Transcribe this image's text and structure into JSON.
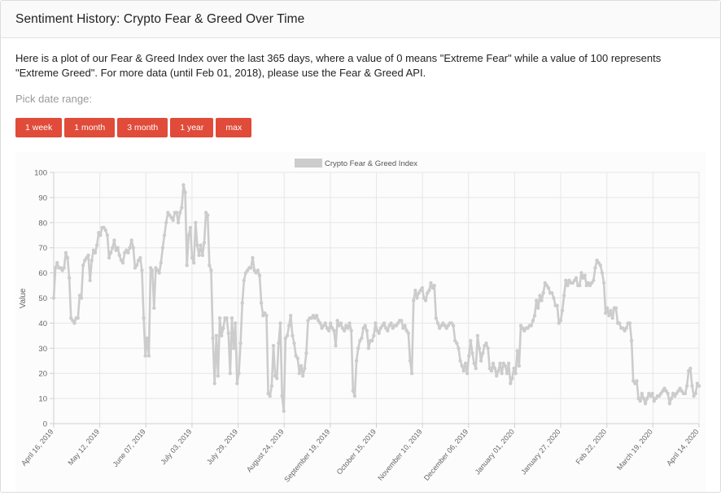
{
  "header": {
    "title": "Sentiment History: Crypto Fear & Greed Over Time"
  },
  "description": "Here is a plot of our Fear & Greed Index over the last 365 days, where a value of 0 means \"Extreme Fear\" while a value of 100 represents \"Extreme Greed\". For more data (until Feb 01, 2018), please use the Fear & Greed API.",
  "range": {
    "label": "Pick date range:",
    "buttons": [
      "1 week",
      "1 month",
      "3 month",
      "1 year",
      "max"
    ]
  },
  "colors": {
    "button": "#e04b3a",
    "series": "#cccccc",
    "grid": "#e6e6e6"
  },
  "chart_data": {
    "type": "line",
    "legend": {
      "label": "Crypto Fear & Greed Index",
      "position": "top"
    },
    "xlabel": "",
    "ylabel": "Value",
    "ylim": [
      0,
      100
    ],
    "yticks": [
      0,
      10,
      20,
      30,
      40,
      50,
      60,
      70,
      80,
      90,
      100
    ],
    "xticks": [
      "April 16, 2019",
      "May 12, 2019",
      "June 07, 2019",
      "July 03, 2019",
      "July 29, 2019",
      "August 24, 2019",
      "September 19, 2019",
      "October 15, 2019",
      "November 10, 2019",
      "December 06, 2019",
      "January 01, 2020",
      "January 27, 2020",
      "Feb 22, 2020",
      "March 19, 2020",
      "April 14, 2020"
    ],
    "grid": true,
    "series": [
      {
        "name": "Crypto Fear & Greed Index",
        "values": [
          50,
          62,
          64,
          62,
          62,
          61,
          62,
          68,
          66,
          58,
          42,
          41,
          40,
          42,
          42,
          51,
          50,
          63,
          65,
          66,
          67,
          57,
          65,
          69,
          68,
          71,
          76,
          75,
          78,
          78,
          77,
          75,
          66,
          68,
          70,
          73,
          69,
          70,
          67,
          65,
          64,
          68,
          69,
          68,
          70,
          73,
          70,
          62,
          63,
          65,
          66,
          61,
          42,
          27,
          34,
          27,
          62,
          61,
          46,
          62,
          61,
          60,
          64,
          70,
          75,
          80,
          84,
          83,
          82,
          81,
          84,
          84,
          80,
          84,
          86,
          95,
          92,
          63,
          75,
          78,
          66,
          64,
          80,
          71,
          67,
          71,
          67,
          72,
          84,
          83,
          63,
          61,
          34,
          16,
          35,
          19,
          42,
          35,
          38,
          42,
          42,
          36,
          20,
          42,
          30,
          40,
          16,
          20,
          32,
          48,
          57,
          60,
          61,
          62,
          62,
          66,
          61,
          60,
          61,
          59,
          48,
          43,
          44,
          43,
          12,
          11,
          15,
          31,
          19,
          18,
          32,
          40,
          11,
          5,
          34,
          35,
          39,
          43,
          35,
          32,
          27,
          26,
          20,
          23,
          19,
          22,
          28,
          41,
          42,
          42,
          43,
          42,
          43,
          41,
          40,
          38,
          39,
          40,
          38,
          37,
          40,
          38,
          37,
          31,
          41,
          39,
          40,
          38,
          37,
          39,
          38,
          40,
          37,
          13,
          11,
          25,
          30,
          33,
          34,
          38,
          39,
          37,
          30,
          33,
          33,
          35,
          40,
          37,
          36,
          38,
          39,
          40,
          38,
          37,
          39,
          40,
          38,
          39,
          39,
          40,
          41,
          41,
          38,
          39,
          37,
          36,
          25,
          20,
          49,
          53,
          50,
          52,
          53,
          54,
          50,
          49,
          52,
          53,
          56,
          54,
          55,
          42,
          40,
          38,
          39,
          40,
          39,
          38,
          39,
          40,
          40,
          39,
          33,
          32,
          30,
          25,
          23,
          21,
          24,
          20,
          27,
          33,
          28,
          24,
          22,
          35,
          30,
          25,
          28,
          31,
          32,
          30,
          22,
          21,
          24,
          22,
          19,
          21,
          24,
          20,
          24,
          23,
          20,
          24,
          16,
          18,
          22,
          20,
          29,
          23,
          39,
          38,
          37,
          38,
          38,
          39,
          39,
          41,
          43,
          49,
          46,
          51,
          49,
          52,
          56,
          55,
          54,
          52,
          52,
          50,
          47,
          47,
          40,
          41,
          45,
          51,
          57,
          55,
          57,
          56,
          56,
          57,
          58,
          55,
          55,
          60,
          58,
          59,
          55,
          56,
          55,
          56,
          57,
          62,
          65,
          64,
          63,
          60,
          56,
          44,
          46,
          43,
          45,
          42,
          46,
          46,
          40,
          40,
          38,
          38,
          37,
          38,
          40,
          40,
          33,
          17,
          16,
          17,
          10,
          9,
          12,
          10,
          8,
          10,
          12,
          11,
          12,
          9,
          10,
          11,
          11,
          12,
          13,
          14,
          13,
          12,
          8,
          10,
          12,
          11,
          12,
          13,
          14,
          13,
          12,
          12,
          15,
          21,
          22,
          15,
          11,
          12,
          16,
          15
        ]
      }
    ]
  }
}
